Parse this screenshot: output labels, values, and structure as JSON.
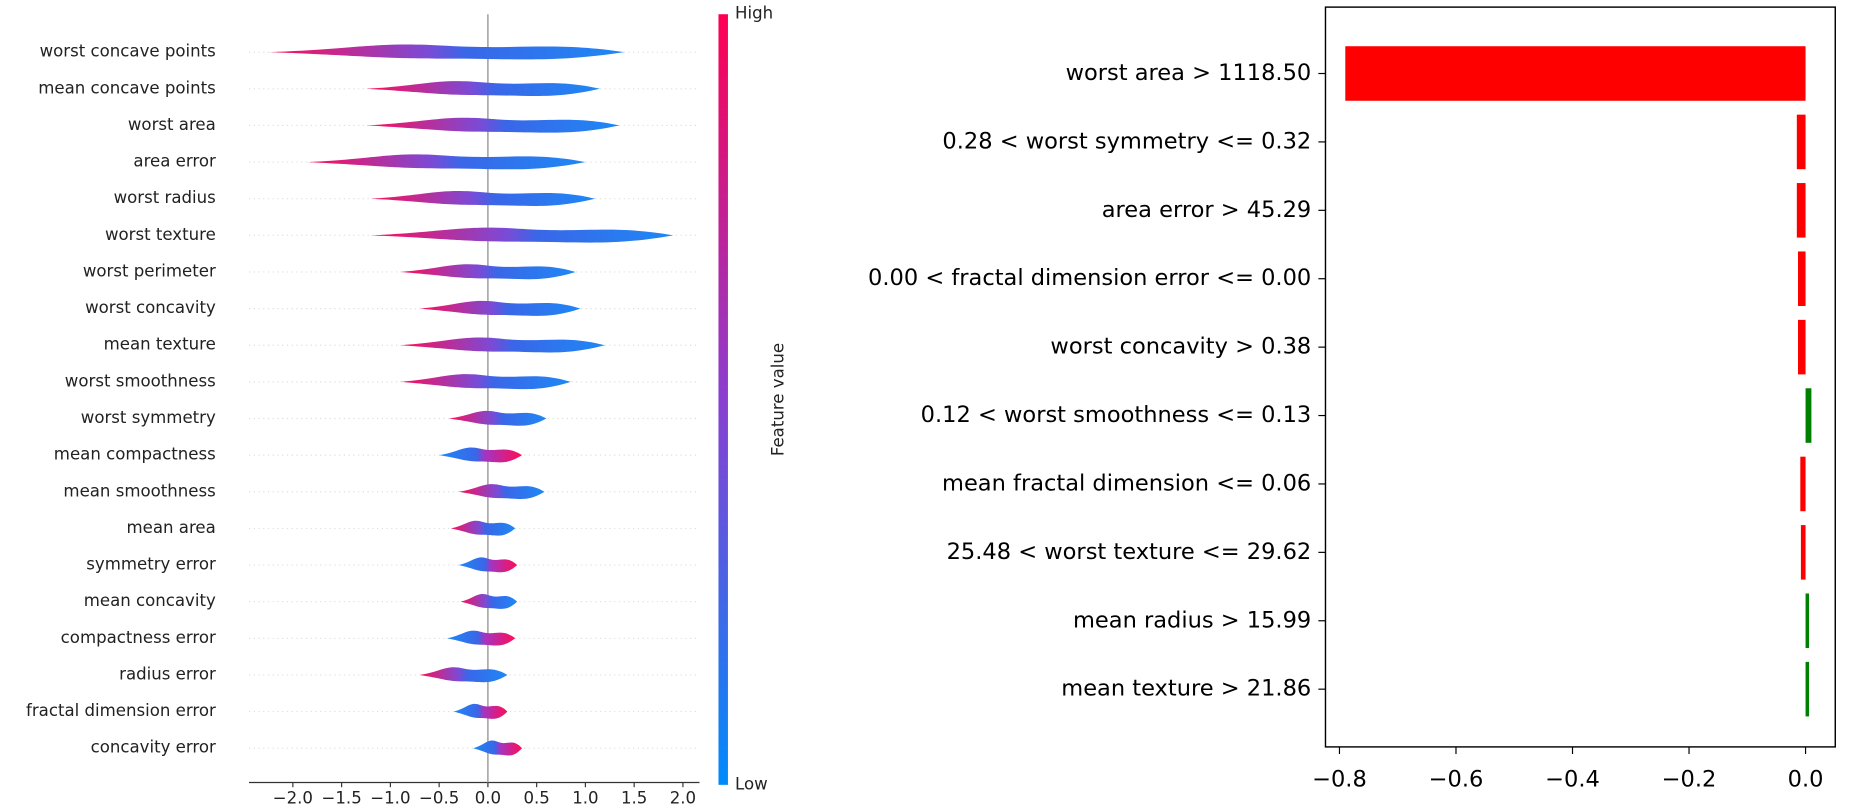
{
  "chart_data": [
    {
      "type": "violin",
      "categories": [
        "worst concave points",
        "mean concave points",
        "worst area",
        "area error",
        "worst radius",
        "worst texture",
        "worst perimeter",
        "worst concavity",
        "mean texture",
        "worst smoothness",
        "worst symmetry",
        "mean compactness",
        "mean smoothness",
        "mean area",
        "symmetry error",
        "mean concavity",
        "compactness error",
        "radius error",
        "fractal dimension error",
        "concavity error"
      ],
      "ranges": [
        [
          -2.25,
          1.4
        ],
        [
          -1.25,
          1.15
        ],
        [
          -1.25,
          1.35
        ],
        [
          -1.85,
          1.0
        ],
        [
          -1.2,
          1.1
        ],
        [
          -1.2,
          1.9
        ],
        [
          -0.9,
          0.9
        ],
        [
          -0.7,
          0.95
        ],
        [
          -0.9,
          1.2
        ],
        [
          -0.9,
          0.85
        ],
        [
          -0.4,
          0.6
        ],
        [
          -0.5,
          0.35
        ],
        [
          -0.3,
          0.58
        ],
        [
          -0.38,
          0.28
        ],
        [
          -0.3,
          0.3
        ],
        [
          -0.28,
          0.3
        ],
        [
          -0.42,
          0.28
        ],
        [
          -0.7,
          0.2
        ],
        [
          -0.35,
          0.2
        ],
        [
          -0.15,
          0.35
        ]
      ],
      "high_side": [
        "left",
        "left",
        "left",
        "left",
        "left",
        "left",
        "left",
        "left",
        "left",
        "left",
        "left",
        "right",
        "left",
        "left",
        "right",
        "left",
        "right",
        "left",
        "right",
        "right"
      ],
      "xlim": [
        -2.45,
        2.17
      ],
      "xticks": [
        {
          "value": -2.0,
          "label": "−2.0"
        },
        {
          "value": -1.5,
          "label": "−1.5"
        },
        {
          "value": -1.0,
          "label": "−1.0"
        },
        {
          "value": -0.5,
          "label": "−0.5"
        },
        {
          "value": 0.0,
          "label": "0.0"
        },
        {
          "value": 0.5,
          "label": "0.5"
        },
        {
          "value": 1.0,
          "label": "1.0"
        },
        {
          "value": 1.5,
          "label": "1.5"
        },
        {
          "value": 2.0,
          "label": "2.0"
        }
      ],
      "colorbar_high": "High",
      "colorbar_low": "Low",
      "colorbar_label": "Feature value"
    },
    {
      "type": "bar",
      "categories": [
        "worst area > 1118.50",
        "0.28 < worst symmetry <= 0.32",
        "area error > 45.29",
        "0.00 < fractal dimension error <= 0.00",
        "worst concavity > 0.38",
        "0.12 < worst smoothness <= 0.13",
        "mean fractal dimension <= 0.06",
        "25.48 < worst texture <= 29.62",
        "mean radius > 15.99",
        "mean texture > 21.86"
      ],
      "values": [
        -0.79,
        -0.015,
        -0.015,
        -0.013,
        -0.013,
        0.01,
        -0.009,
        -0.008,
        0.006,
        0.006
      ],
      "colors": [
        "#ff0000",
        "#ff0000",
        "#ff0000",
        "#ff0000",
        "#ff0000",
        "#008000",
        "#ff0000",
        "#ff0000",
        "#008000",
        "#008000"
      ],
      "xlim": [
        -0.824,
        0.051
      ],
      "xticks": [
        {
          "value": -0.8,
          "label": "−0.8"
        },
        {
          "value": -0.6,
          "label": "−0.6"
        },
        {
          "value": -0.4,
          "label": "−0.4"
        },
        {
          "value": -0.2,
          "label": "−0.2"
        },
        {
          "value": 0.0,
          "label": "0.0"
        }
      ]
    }
  ]
}
